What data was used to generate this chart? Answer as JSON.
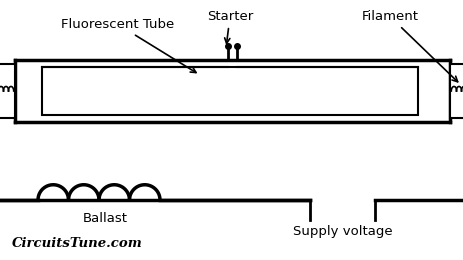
{
  "bg_color": "#ffffff",
  "line_color": "#000000",
  "labels": {
    "fluorescent_tube": "Fluorescent Tube",
    "starter": "Starter",
    "filament": "Filament",
    "ballast": "Ballast",
    "supply_voltage": "Supply voltage",
    "watermark": "CircuitsTune.com"
  }
}
